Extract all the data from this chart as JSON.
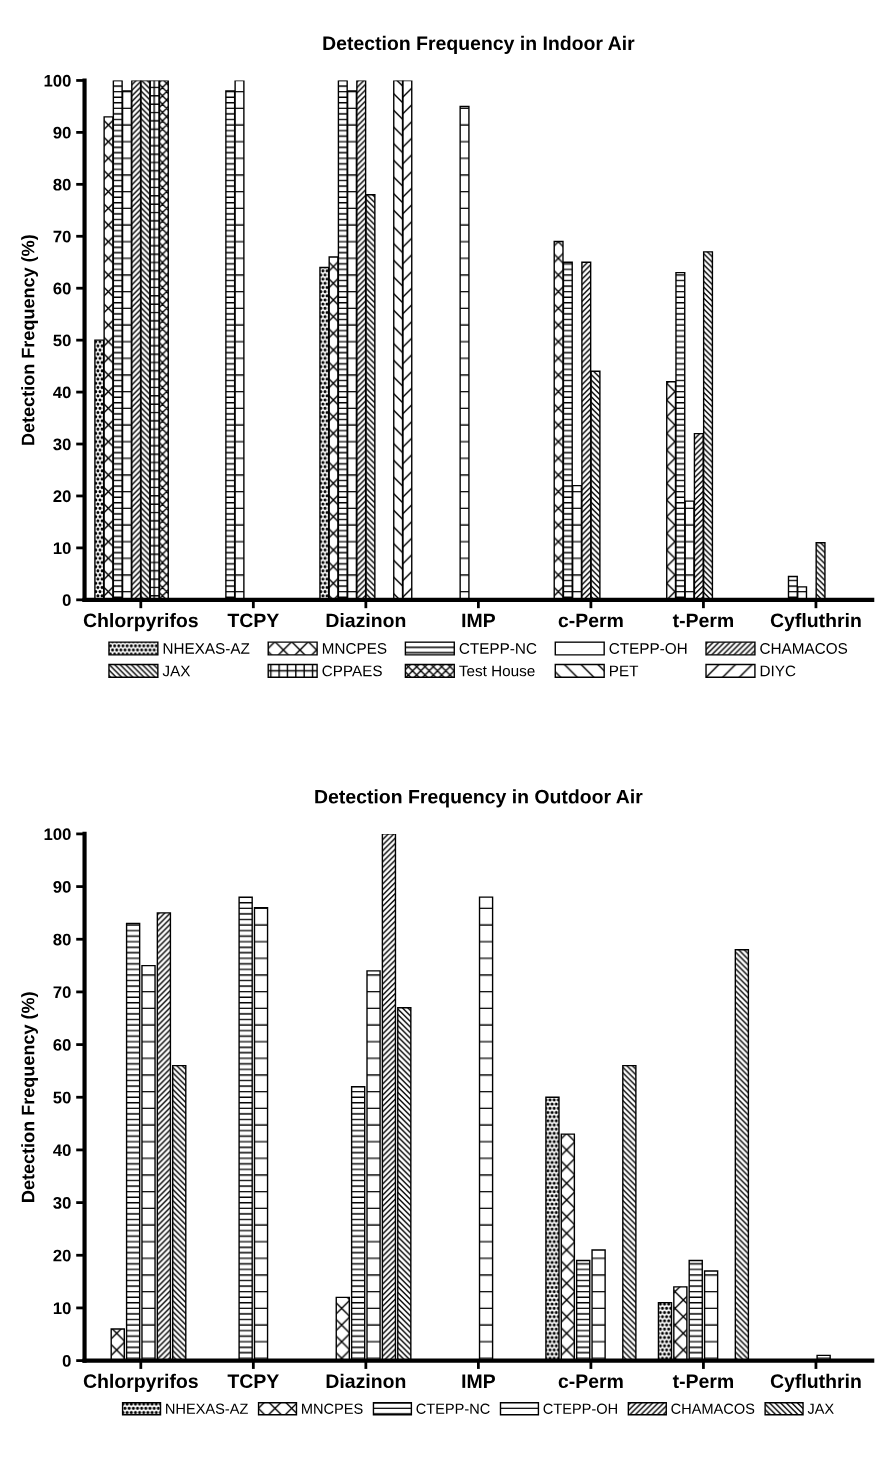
{
  "chart_data": [
    {
      "type": "bar",
      "title": "Detection Frequency in Indoor Air",
      "ylabel": "Detection Frequency (%)",
      "categories": [
        "Chlorpyrifos",
        "TCPY",
        "Diazinon",
        "IMP",
        "c-Perm",
        "t-Perm",
        "Cyfluthrin"
      ],
      "ylim": [
        0,
        100
      ],
      "yticks": [
        0,
        10,
        20,
        30,
        40,
        50,
        60,
        70,
        80,
        90,
        100
      ],
      "grid": false,
      "legend": "bottom",
      "series": [
        {
          "name": "NHEXAS-AZ",
          "color": "#000000",
          "values": [
            50,
            null,
            64,
            null,
            null,
            null,
            null
          ]
        },
        {
          "name": "MNCPES",
          "color": "#000000",
          "values": [
            93,
            null,
            66,
            null,
            69,
            42,
            null
          ]
        },
        {
          "name": "CTEPP-NC",
          "color": "#000000",
          "values": [
            100,
            98,
            100,
            null,
            65,
            63,
            4.5
          ]
        },
        {
          "name": "CTEPP-OH",
          "color": "#000000",
          "values": [
            98,
            100,
            98,
            95,
            22,
            19,
            2.5
          ]
        },
        {
          "name": "CHAMACOS",
          "color": "#000000",
          "values": [
            100,
            null,
            100,
            null,
            65,
            32,
            null
          ]
        },
        {
          "name": "JAX",
          "color": "#000000",
          "values": [
            100,
            null,
            78,
            null,
            44,
            67,
            11
          ]
        },
        {
          "name": "CPPAES",
          "color": "#000000",
          "values": [
            100,
            null,
            null,
            null,
            null,
            null,
            null
          ]
        },
        {
          "name": "Test House",
          "color": "#000000",
          "values": [
            100,
            null,
            null,
            null,
            null,
            null,
            null
          ]
        },
        {
          "name": "PET",
          "color": "#000000",
          "values": [
            null,
            null,
            100,
            null,
            null,
            null,
            null
          ]
        },
        {
          "name": "DIYC",
          "color": "#000000",
          "values": [
            null,
            null,
            100,
            null,
            null,
            null,
            null
          ]
        }
      ]
    },
    {
      "type": "bar",
      "title": "Detection Frequency in Outdoor Air",
      "ylabel": "Detection Frequency (%)",
      "categories": [
        "Chlorpyrifos",
        "TCPY",
        "Diazinon",
        "IMP",
        "c-Perm",
        "t-Perm",
        "Cyfluthrin"
      ],
      "ylim": [
        0,
        100
      ],
      "yticks": [
        0,
        10,
        20,
        30,
        40,
        50,
        60,
        70,
        80,
        90,
        100
      ],
      "grid": false,
      "legend": "bottom",
      "series": [
        {
          "name": "NHEXAS-AZ",
          "color": "#000000",
          "values": [
            null,
            null,
            null,
            null,
            50,
            11,
            null
          ]
        },
        {
          "name": "MNCPES",
          "color": "#000000",
          "values": [
            6,
            null,
            12,
            null,
            43,
            14,
            null
          ]
        },
        {
          "name": "CTEPP-NC",
          "color": "#000000",
          "values": [
            83,
            88,
            52,
            null,
            19,
            19,
            null
          ]
        },
        {
          "name": "CTEPP-OH",
          "color": "#000000",
          "values": [
            75,
            86,
            74,
            88,
            21,
            17,
            1
          ]
        },
        {
          "name": "CHAMACOS",
          "color": "#000000",
          "values": [
            85,
            null,
            100,
            null,
            null,
            null,
            null
          ]
        },
        {
          "name": "JAX",
          "color": "#000000",
          "values": [
            56,
            null,
            67,
            null,
            56,
            78,
            null
          ]
        }
      ]
    }
  ]
}
